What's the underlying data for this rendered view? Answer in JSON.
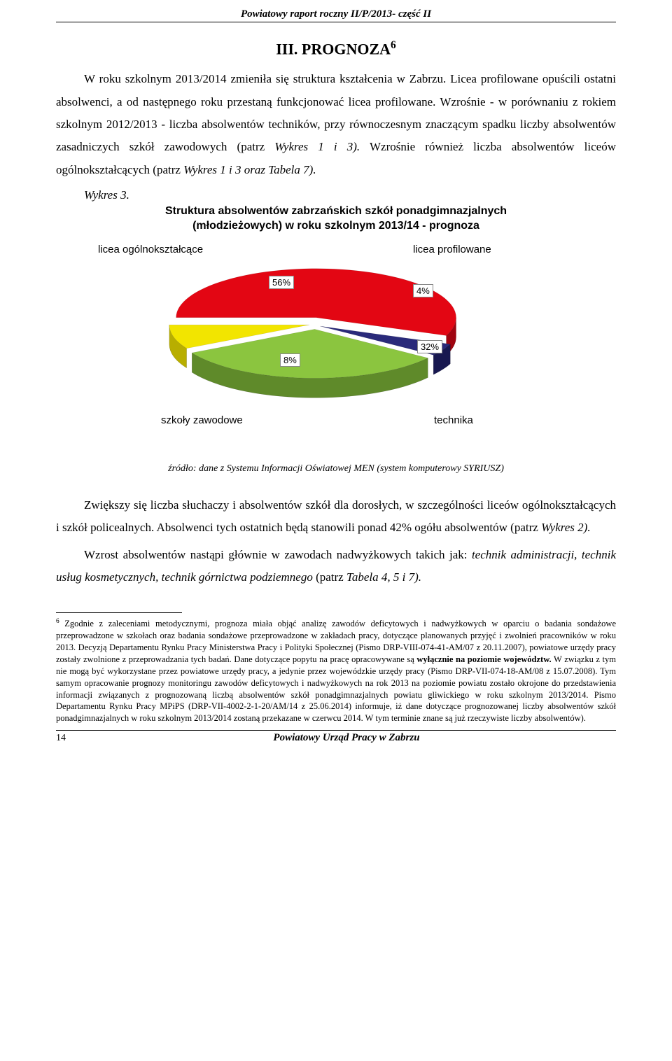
{
  "header": {
    "title": "Powiatowy raport roczny II/P/2013- część II"
  },
  "section": {
    "title_prefix": "III. PROGNOZA",
    "title_sup": "6"
  },
  "paragraphs": {
    "p1a": "W roku szkolnym 2013/2014 zmieniła się struktura kształcenia w Zabrzu. Licea profilowane opuścili ostatni absolwenci, a od następnego roku przestaną funkcjonować licea profilowane. Wzrośnie - w porównaniu z rokiem szkolnym 2012/2013 - liczba absolwentów techników, przy równoczesnym znaczącym spadku liczby absolwentów zasadniczych szkół zawodowych (patrz ",
    "p1b": "Wykres 1 i 3).",
    "p1c": " Wzrośnie również liczba absolwentów liceów ogólnokształcących (patrz ",
    "p1d": "Wykres 1 i 3 oraz Tabela 7).",
    "p2a": "Zwiększy się liczba słuchaczy i absolwentów szkół dla dorosłych, w szczególności liceów ogólnokształcących i szkół policealnych. Absolwenci tych ostatnich będą stanowili ponad 42% ogółu absolwentów (patrz ",
    "p2b": "Wykres 2).",
    "p3a": "Wzrost absolwentów nastąpi głównie w zawodach nadwyżkowych takich jak: ",
    "p3b": "technik administracji, technik usług kosmetycznych, technik górnictwa podziemnego ",
    "p3c": "(patrz ",
    "p3d": "Tabela 4, 5 i 7)."
  },
  "chart": {
    "ref": "Wykres 3.",
    "title_line1": "Struktura absolwentów zabrzańskich szkół ponadgimnazjalnych",
    "title_line2": "(młodzieżowych)  w roku szkolnym 2013/14  - prognoza",
    "labels": {
      "top_left": "licea ogólnokształcące",
      "top_right": "licea profilowane",
      "bottom_left": "szkoły zawodowe",
      "bottom_right": "technika"
    },
    "slices": [
      {
        "name": "licea_ogolnoksztalcace",
        "value": 56,
        "color_top": "#e30613",
        "color_side": "#a00410"
      },
      {
        "name": "licea_profilowane",
        "value": 4,
        "color_top": "#2a2a7a",
        "color_side": "#181850"
      },
      {
        "name": "technika",
        "value": 32,
        "color_top": "#8bc53f",
        "color_side": "#5f8a2a"
      },
      {
        "name": "szkoly_zawodowe",
        "value": 8,
        "color_top": "#f2e500",
        "color_side": "#b8ae00"
      }
    ],
    "pct_labels": {
      "p56": "56%",
      "p4": "4%",
      "p32": "32%",
      "p8": "8%"
    }
  },
  "source": {
    "text": "źródło: dane z Systemu Informacji Oświatowej MEN (system komputerowy SYRIUSZ)"
  },
  "footnote": {
    "sup": "6",
    "t1": " Zgodnie z zaleceniami metodycznymi, prognoza miała objąć analizę zawodów deficytowych i nadwyżkowych w oparciu o badania sondażowe przeprowadzone w szkołach oraz badania sondażowe przeprowadzone w zakładach pracy, dotyczące planowanych przyjęć i zwolnień pracowników w roku 2013. Decyzją Departamentu Rynku Pracy Ministerstwa Pracy i Polityki Społecznej (Pismo DRP-VIII-074-41-AM/07 z 20.11.2007), powiatowe urzędy pracy zostały zwolnione z przeprowadzania tych badań. Dane dotyczące popytu na pracę opracowywane są ",
    "t1b": "wyłącznie na poziomie województw.",
    "t2": " W związku z tym nie mogą być wykorzystane przez powiatowe urzędy pracy, a jedynie przez wojewódzkie urzędy pracy (Pismo DRP-VII-074-18-AM/08 z 15.07.2008). Tym samym opracowanie prognozy monitoringu zawodów deficytowych i nadwyżkowych na rok 2013 na poziomie powiatu zostało okrojone do przedstawienia informacji związanych z prognozowaną liczbą absolwentów szkół ponadgimnazjalnych powiatu gliwickiego w roku szkolnym 2013/2014. Pismo Departamentu Rynku Pracy MPiPS (DRP-VII-4002-2-1-20/AM/14 z 25.06.2014) informuje, iż dane dotyczące prognozowanej liczby absolwentów szkół ponadgimnazjalnych w roku szkolnym 2013/2014 zostaną przekazane w czerwcu 2014. W tym terminie znane są już rzeczywiste liczby absolwentów)."
  },
  "footer": {
    "page_number": "14",
    "title": "Powiatowy Urząd Pracy w Zabrzu"
  }
}
